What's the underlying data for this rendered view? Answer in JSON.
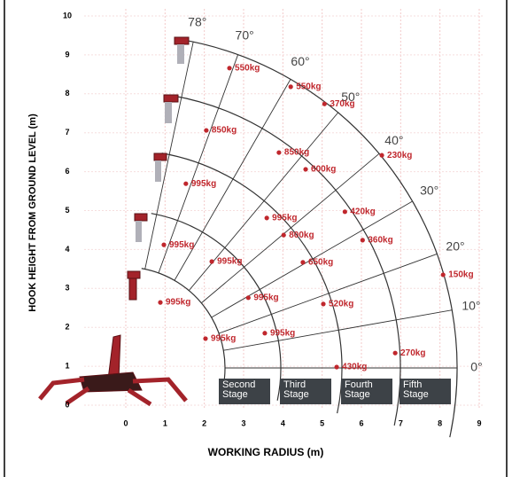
{
  "chart_data": {
    "type": "scatter",
    "x_label": "WORKING RADIUS (m)",
    "y_label": "HOOK HEIGHT FROM GROUND LEVEL (m)",
    "xlim": [
      0,
      9
    ],
    "ylim": [
      0,
      10
    ],
    "xticks": [
      0,
      1,
      2,
      3,
      4,
      5,
      6,
      7,
      8,
      9
    ],
    "yticks": [
      0,
      1,
      2,
      3,
      4,
      5,
      6,
      7,
      8,
      9,
      10
    ],
    "grid": true,
    "series": [
      {
        "color": "#c0272d",
        "x": [
          2.64,
          4.2,
          5.06,
          2.05,
          3.9,
          4.58,
          6.52,
          1.53,
          3.59,
          4.02,
          5.58,
          6.03,
          0.97,
          2.19,
          4.51,
          8.08,
          0.88,
          3.12,
          5.03,
          2.03,
          3.54,
          5.37,
          6.86
        ],
        "values": [
          8.66,
          8.18,
          7.74,
          7.06,
          6.49,
          6.06,
          6.42,
          5.69,
          4.81,
          4.37,
          4.97,
          4.24,
          4.12,
          3.69,
          3.67,
          3.35,
          2.64,
          2.76,
          2.6,
          1.71,
          1.85,
          0.98,
          1.34
        ],
        "labels": [
          "550kg",
          "550kg",
          "370kg",
          "850kg",
          "850kg",
          "600kg",
          "230kg",
          "995kg",
          "995kg",
          "800kg",
          "420kg",
          "360kg",
          "995kg",
          "995kg",
          "650kg",
          "150kg",
          "995kg",
          "995kg",
          "520kg",
          "995kg",
          "995kg",
          "430kg",
          "270kg"
        ]
      }
    ],
    "angles": [
      {
        "value": 78,
        "label": "78°"
      },
      {
        "value": 70,
        "label": "70°"
      },
      {
        "value": 60,
        "label": "60°"
      },
      {
        "value": 50,
        "label": "50°"
      },
      {
        "value": 40,
        "label": "40°"
      },
      {
        "value": 30,
        "label": "30°"
      },
      {
        "value": 20,
        "label": "20°"
      },
      {
        "value": 10,
        "label": "10°"
      },
      {
        "value": 0,
        "label": "0°"
      }
    ],
    "stages": [
      "Second Stage",
      "Third Stage",
      "Fourth Stage",
      "Fifth Stage"
    ]
  }
}
